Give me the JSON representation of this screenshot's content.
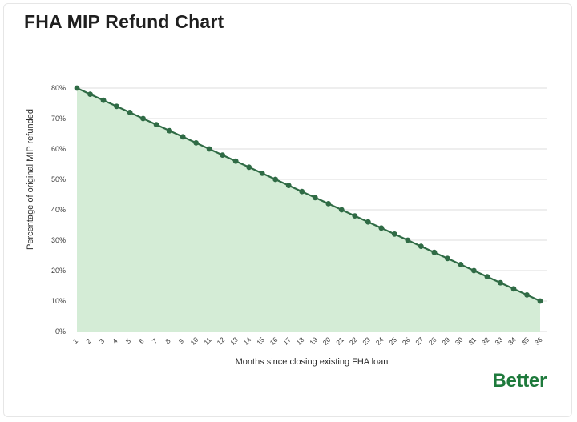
{
  "chart_data": {
    "type": "line",
    "title": "FHA MIP Refund Chart",
    "xlabel": "Months since closing existing FHA loan",
    "ylabel": "Percentage of original MIP refunded",
    "x": [
      1,
      2,
      3,
      4,
      5,
      6,
      7,
      8,
      9,
      10,
      11,
      12,
      13,
      14,
      15,
      16,
      17,
      18,
      19,
      20,
      21,
      22,
      23,
      24,
      25,
      26,
      27,
      28,
      29,
      30,
      31,
      32,
      33,
      34,
      35,
      36
    ],
    "series": [
      {
        "values": [
          80,
          78,
          76,
          74,
          72,
          70,
          68,
          66,
          64,
          62,
          60,
          58,
          56,
          54,
          52,
          50,
          48,
          46,
          44,
          42,
          40,
          38,
          36,
          34,
          32,
          30,
          28,
          26,
          24,
          22,
          20,
          18,
          16,
          14,
          12,
          10
        ]
      }
    ],
    "ylim": [
      0,
      80
    ],
    "yticks": [
      "0%",
      "10%",
      "20%",
      "30%",
      "40%",
      "50%",
      "60%",
      "70%",
      "80%"
    ],
    "grid": true,
    "fill_area": true,
    "colors": {
      "line": "#2f6b45",
      "marker": "#2f6b45",
      "fill": "#d4ecd6",
      "grid": "#dedede"
    }
  },
  "branding": {
    "logo_text": "Better",
    "logo_color": "#1e7a3c"
  }
}
